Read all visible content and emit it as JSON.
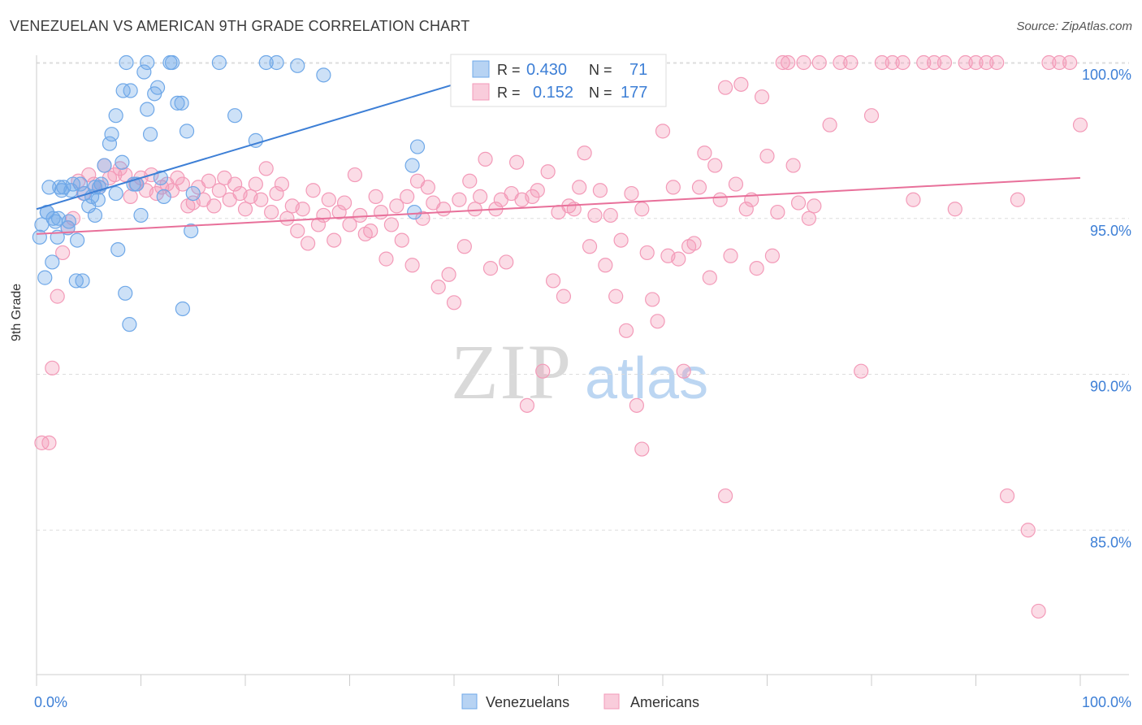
{
  "title": "VENEZUELAN VS AMERICAN 9TH GRADE CORRELATION CHART",
  "source": "Source: ZipAtlas.com",
  "watermark": {
    "zip": "ZIP",
    "atlas": "atlas"
  },
  "chart_data": {
    "type": "scatter",
    "ylabel": "9th Grade",
    "xlim": [
      0,
      100
    ],
    "ylim": [
      80.0,
      101.0
    ],
    "x_tick_labels": [
      "0.0%",
      "100.0%"
    ],
    "y_ticks": [
      85.0,
      90.0,
      95.0,
      100.0
    ],
    "y_tick_labels": [
      "85.0%",
      "90.0%",
      "95.0%",
      "100.0%"
    ],
    "legend": {
      "entries": [
        {
          "name": "R = ",
          "r_label": "R = ",
          "r_value": "0.430",
          "n_label": "N = ",
          "n_value": "71"
        },
        {
          "name": "R = ",
          "r_label": "R = ",
          "r_value": "0.152",
          "n_label": "N = ",
          "n_value": "177"
        }
      ]
    },
    "bottom_legend": [
      "Venezuelans",
      "Americans"
    ],
    "colors": {
      "venezuelans": "#6fa8e8",
      "americans": "#f39ab8",
      "blue_line": "#3d7fd6",
      "pink_line": "#e8709a",
      "blue_text": "#3d7fd6"
    },
    "series": [
      {
        "name": "Venezuelans",
        "trend": {
          "x": [
            0,
            47
          ],
          "y": [
            95.3,
            100.0
          ]
        },
        "points": [
          [
            0.3,
            94.4
          ],
          [
            0.8,
            93.1
          ],
          [
            1.0,
            95.2
          ],
          [
            1.2,
            96.0
          ],
          [
            1.5,
            93.6
          ],
          [
            1.8,
            94.9
          ],
          [
            2.0,
            94.4
          ],
          [
            2.2,
            96.0
          ],
          [
            2.4,
            95.9
          ],
          [
            2.6,
            96.0
          ],
          [
            3.0,
            94.7
          ],
          [
            3.3,
            95.9
          ],
          [
            3.5,
            96.1
          ],
          [
            3.8,
            93.0
          ],
          [
            3.9,
            94.3
          ],
          [
            4.2,
            96.1
          ],
          [
            4.4,
            93.0
          ],
          [
            4.6,
            95.8
          ],
          [
            5.0,
            95.4
          ],
          [
            5.3,
            95.7
          ],
          [
            5.6,
            95.1
          ],
          [
            5.9,
            95.6
          ],
          [
            6.2,
            96.1
          ],
          [
            6.5,
            96.7
          ],
          [
            7.0,
            97.4
          ],
          [
            7.2,
            97.7
          ],
          [
            7.6,
            95.8
          ],
          [
            7.8,
            94.0
          ],
          [
            8.2,
            96.8
          ],
          [
            8.5,
            92.6
          ],
          [
            8.9,
            91.6
          ],
          [
            9.3,
            96.1
          ],
          [
            9.6,
            96.1
          ],
          [
            10.0,
            95.1
          ],
          [
            10.3,
            99.7
          ],
          [
            10.6,
            98.5
          ],
          [
            10.9,
            97.7
          ],
          [
            11.3,
            99.0
          ],
          [
            11.6,
            99.2
          ],
          [
            11.9,
            96.3
          ],
          [
            12.2,
            95.7
          ],
          [
            13.0,
            100.0
          ],
          [
            13.5,
            98.7
          ],
          [
            13.9,
            98.7
          ],
          [
            14.4,
            97.8
          ],
          [
            14.8,
            94.6
          ],
          [
            15.0,
            95.8
          ],
          [
            8.6,
            100.0
          ],
          [
            10.6,
            100.0
          ],
          [
            12.8,
            100.0
          ],
          [
            17.5,
            100.0
          ],
          [
            19.0,
            98.3
          ],
          [
            21.0,
            97.5
          ],
          [
            22.0,
            100.0
          ],
          [
            23.0,
            100.0
          ],
          [
            25.0,
            99.9
          ],
          [
            27.5,
            99.6
          ],
          [
            36.0,
            96.7
          ],
          [
            36.5,
            97.3
          ],
          [
            36.2,
            95.2
          ],
          [
            1.0,
            95.2
          ],
          [
            2.1,
            95.0
          ],
          [
            3.1,
            94.9
          ],
          [
            8.3,
            99.1
          ],
          [
            9.0,
            99.1
          ],
          [
            14.0,
            92.1
          ],
          [
            6.0,
            96.0
          ],
          [
            5.6,
            96.0
          ],
          [
            1.6,
            95.0
          ],
          [
            0.5,
            94.8
          ],
          [
            7.6,
            98.3
          ]
        ]
      },
      {
        "name": "Americans",
        "trend": {
          "x": [
            0,
            100
          ],
          "y": [
            94.5,
            96.3
          ]
        },
        "points": [
          [
            0.5,
            87.8
          ],
          [
            1.2,
            87.8
          ],
          [
            1.5,
            90.2
          ],
          [
            2.0,
            92.5
          ],
          [
            2.5,
            93.9
          ],
          [
            3.0,
            94.7
          ],
          [
            3.5,
            95.0
          ],
          [
            4.0,
            96.2
          ],
          [
            4.5,
            95.8
          ],
          [
            5.0,
            96.4
          ],
          [
            5.5,
            96.1
          ],
          [
            6.0,
            96.0
          ],
          [
            6.5,
            96.7
          ],
          [
            7.0,
            96.3
          ],
          [
            7.5,
            96.4
          ],
          [
            8.0,
            96.6
          ],
          [
            8.5,
            96.4
          ],
          [
            9.0,
            95.7
          ],
          [
            9.5,
            96.1
          ],
          [
            10.0,
            96.3
          ],
          [
            10.5,
            95.9
          ],
          [
            11.0,
            96.4
          ],
          [
            11.5,
            95.8
          ],
          [
            12.0,
            96.0
          ],
          [
            12.5,
            96.1
          ],
          [
            13.0,
            95.9
          ],
          [
            13.5,
            96.3
          ],
          [
            14.0,
            96.1
          ],
          [
            14.5,
            95.4
          ],
          [
            15.0,
            95.5
          ],
          [
            15.5,
            96.0
          ],
          [
            16.0,
            95.6
          ],
          [
            16.5,
            96.2
          ],
          [
            17.0,
            95.4
          ],
          [
            17.5,
            95.9
          ],
          [
            18.0,
            96.3
          ],
          [
            18.5,
            95.6
          ],
          [
            19.0,
            96.1
          ],
          [
            19.5,
            95.8
          ],
          [
            20.0,
            95.3
          ],
          [
            20.5,
            95.7
          ],
          [
            21.0,
            96.1
          ],
          [
            21.5,
            95.6
          ],
          [
            22.0,
            96.6
          ],
          [
            22.5,
            95.2
          ],
          [
            23.0,
            95.8
          ],
          [
            23.5,
            96.1
          ],
          [
            24.0,
            95.0
          ],
          [
            24.5,
            95.4
          ],
          [
            25.0,
            94.6
          ],
          [
            25.5,
            95.3
          ],
          [
            26.0,
            94.2
          ],
          [
            26.5,
            95.9
          ],
          [
            27.0,
            94.8
          ],
          [
            27.5,
            95.1
          ],
          [
            28.0,
            95.6
          ],
          [
            28.5,
            94.3
          ],
          [
            29.0,
            95.2
          ],
          [
            29.5,
            95.5
          ],
          [
            30.0,
            94.8
          ],
          [
            30.5,
            96.4
          ],
          [
            31.0,
            95.1
          ],
          [
            31.5,
            94.5
          ],
          [
            32.0,
            94.6
          ],
          [
            32.5,
            95.7
          ],
          [
            33.0,
            95.2
          ],
          [
            33.5,
            93.7
          ],
          [
            34.0,
            94.8
          ],
          [
            34.5,
            95.4
          ],
          [
            35.0,
            94.3
          ],
          [
            35.5,
            95.7
          ],
          [
            36.0,
            93.5
          ],
          [
            36.5,
            96.2
          ],
          [
            37.0,
            95.0
          ],
          [
            37.5,
            96.0
          ],
          [
            38.0,
            95.5
          ],
          [
            38.5,
            92.8
          ],
          [
            39.0,
            95.3
          ],
          [
            39.5,
            93.2
          ],
          [
            40.0,
            92.3
          ],
          [
            40.5,
            95.6
          ],
          [
            41.0,
            94.1
          ],
          [
            41.5,
            96.2
          ],
          [
            42.0,
            95.3
          ],
          [
            42.5,
            95.7
          ],
          [
            43.0,
            96.9
          ],
          [
            43.5,
            93.4
          ],
          [
            44.0,
            95.3
          ],
          [
            44.5,
            95.6
          ],
          [
            45.0,
            93.6
          ],
          [
            45.5,
            95.8
          ],
          [
            46.0,
            96.8
          ],
          [
            46.5,
            95.6
          ],
          [
            47.0,
            89.0
          ],
          [
            47.5,
            95.7
          ],
          [
            48.0,
            95.9
          ],
          [
            48.5,
            90.1
          ],
          [
            49.0,
            96.5
          ],
          [
            49.5,
            93.0
          ],
          [
            50.0,
            95.2
          ],
          [
            50.5,
            92.5
          ],
          [
            51.0,
            95.4
          ],
          [
            51.5,
            95.3
          ],
          [
            52.0,
            96.0
          ],
          [
            52.5,
            97.1
          ],
          [
            53.0,
            94.1
          ],
          [
            53.5,
            95.1
          ],
          [
            54.0,
            95.9
          ],
          [
            54.5,
            93.5
          ],
          [
            55.0,
            95.1
          ],
          [
            55.5,
            92.5
          ],
          [
            56.0,
            94.3
          ],
          [
            56.5,
            91.4
          ],
          [
            57.0,
            95.8
          ],
          [
            57.5,
            89.0
          ],
          [
            58.0,
            95.3
          ],
          [
            58.5,
            93.9
          ],
          [
            59.0,
            92.4
          ],
          [
            59.5,
            91.7
          ],
          [
            60.0,
            97.8
          ],
          [
            60.5,
            93.8
          ],
          [
            61.0,
            96.0
          ],
          [
            61.5,
            93.7
          ],
          [
            62.0,
            90.1
          ],
          [
            62.5,
            94.1
          ],
          [
            63.0,
            94.2
          ],
          [
            63.5,
            96.0
          ],
          [
            64.0,
            97.1
          ],
          [
            64.5,
            93.1
          ],
          [
            65.0,
            96.7
          ],
          [
            65.5,
            95.6
          ],
          [
            66.0,
            99.2
          ],
          [
            66.5,
            93.8
          ],
          [
            67.0,
            96.1
          ],
          [
            67.5,
            99.3
          ],
          [
            68.0,
            95.3
          ],
          [
            68.5,
            95.6
          ],
          [
            69.0,
            93.4
          ],
          [
            69.5,
            98.9
          ],
          [
            70.0,
            97.0
          ],
          [
            70.5,
            93.8
          ],
          [
            71.0,
            95.2
          ],
          [
            71.5,
            100.0
          ],
          [
            72.0,
            100.0
          ],
          [
            72.5,
            96.7
          ],
          [
            73.0,
            95.5
          ],
          [
            73.5,
            100.0
          ],
          [
            74.0,
            95.0
          ],
          [
            74.5,
            95.4
          ],
          [
            75.0,
            100.0
          ],
          [
            76.0,
            98.0
          ],
          [
            77.0,
            100.0
          ],
          [
            78.0,
            100.0
          ],
          [
            79.0,
            90.1
          ],
          [
            80.0,
            98.3
          ],
          [
            81.0,
            100.0
          ],
          [
            82.0,
            100.0
          ],
          [
            83.0,
            100.0
          ],
          [
            84.0,
            95.6
          ],
          [
            85.0,
            100.0
          ],
          [
            86.0,
            100.0
          ],
          [
            87.0,
            100.0
          ],
          [
            88.0,
            95.3
          ],
          [
            89.0,
            100.0
          ],
          [
            90.0,
            100.0
          ],
          [
            91.0,
            100.0
          ],
          [
            92.0,
            100.0
          ],
          [
            93.0,
            86.1
          ],
          [
            94.0,
            95.6
          ],
          [
            95.0,
            85.0
          ],
          [
            96.0,
            82.4
          ],
          [
            97.0,
            100.0
          ],
          [
            98.0,
            100.0
          ],
          [
            99.0,
            100.0
          ],
          [
            100.0,
            98.0
          ],
          [
            58.0,
            87.6
          ],
          [
            66.0,
            86.1
          ]
        ]
      }
    ]
  }
}
